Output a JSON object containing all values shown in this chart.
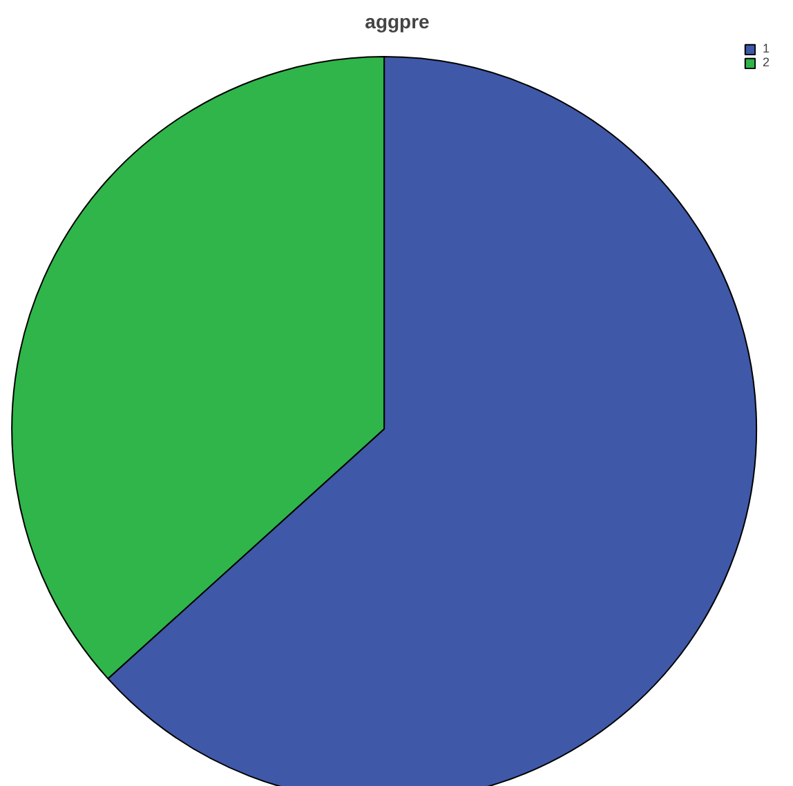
{
  "chart_data": {
    "type": "pie",
    "title": "aggpre",
    "categories": [
      "1",
      "2"
    ],
    "values": [
      63.3,
      36.7
    ],
    "colors": [
      "#3f58a8",
      "#2fb54a"
    ],
    "legend": "top right"
  }
}
